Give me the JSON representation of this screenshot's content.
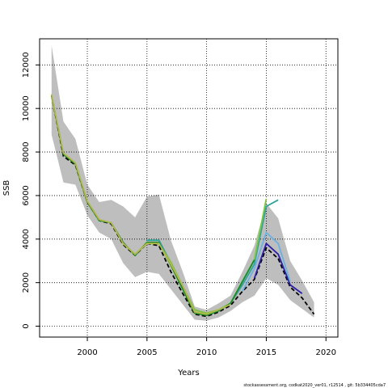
{
  "chart_data": {
    "type": "line",
    "xlabel": "Years",
    "ylabel": "SSB",
    "xlim": [
      1996,
      2021
    ],
    "ylim": [
      -500,
      13200
    ],
    "x_ticks": [
      2000,
      2005,
      2010,
      2015,
      2020
    ],
    "y_ticks": [
      0,
      2000,
      4000,
      6000,
      8000,
      10000,
      12000
    ],
    "grid": true,
    "footer": "stockassessment.org, codkat2020_ver01, r12514 , git: 5b334405cda7",
    "band": {
      "color": "#bebebe",
      "x": [
        1997,
        1998,
        1999,
        2000,
        2001,
        2002,
        2003,
        2004,
        2005,
        2006,
        2007,
        2008,
        2009,
        2010,
        2011,
        2012,
        2013,
        2014,
        2015,
        2016,
        2017,
        2018,
        2019
      ],
      "lower": [
        8800,
        6600,
        6500,
        5100,
        4300,
        4000,
        2900,
        2250,
        2500,
        2400,
        1700,
        1000,
        300,
        250,
        400,
        700,
        1100,
        1400,
        2200,
        1900,
        1200,
        800,
        400
      ],
      "upper": [
        12900,
        9400,
        8600,
        6500,
        5700,
        5800,
        5500,
        5000,
        5950,
        6050,
        3950,
        2500,
        900,
        750,
        1050,
        1400,
        2500,
        3700,
        5650,
        4950,
        3000,
        2100,
        1100
      ]
    },
    "series": [
      {
        "color": "#000000",
        "dash": "5,3",
        "x": [
          1997,
          1998,
          1999,
          2000,
          2001,
          2002,
          2003,
          2004,
          2005,
          2006,
          2007,
          2008,
          2009,
          2010,
          2011,
          2012,
          2013,
          2014,
          2015,
          2016,
          2017,
          2018,
          2019
        ],
        "values": [
          10600,
          7800,
          7400,
          5700,
          4850,
          4700,
          3750,
          3250,
          3800,
          3700,
          2500,
          1500,
          550,
          450,
          650,
          950,
          1600,
          2150,
          3600,
          3100,
          1800,
          1300,
          550
        ]
      },
      {
        "color": "#2c1faa",
        "x": [
          2014,
          2015,
          2016,
          2017,
          2018
        ],
        "values": [
          2200,
          3800,
          3300,
          1900,
          1500
        ]
      },
      {
        "color": "#6ab1e4",
        "x": [
          2013,
          2014,
          2015,
          2016,
          2017
        ],
        "values": [
          1600,
          2650,
          4300,
          3800,
          2050
        ]
      },
      {
        "color": "#2ca59a",
        "x": [
          2005,
          2006,
          2007,
          2008,
          2009,
          2010,
          2011,
          2012,
          2013,
          2014,
          2015,
          2016
        ],
        "values": [
          3950,
          3950,
          2900,
          1750,
          650,
          550,
          750,
          1050,
          1900,
          2850,
          5500,
          5800
        ]
      },
      {
        "color": "#7cc43c",
        "x": [
          2003,
          2004,
          2005,
          2006,
          2007,
          2008,
          2009,
          2010,
          2011,
          2012,
          2013,
          2014,
          2015
        ],
        "values": [
          3800,
          3300,
          3800,
          3800,
          2950,
          1850,
          750,
          600,
          750,
          1050,
          2050,
          3050,
          5850
        ]
      },
      {
        "color": "#1c8a2a",
        "x": [
          1997,
          1998,
          1999,
          2000,
          2001,
          2002,
          2003,
          2004,
          2005,
          2006,
          2007,
          2008,
          2009,
          2010,
          2011,
          2012,
          2013,
          2014
        ],
        "values": [
          10600,
          7900,
          7450,
          5700,
          4850,
          4750,
          3850,
          3250,
          3850,
          3850,
          2800,
          1700,
          600,
          500,
          700,
          1050,
          2050,
          3050
        ]
      },
      {
        "color": "#b5b84a",
        "x": [
          1997,
          1998,
          1999,
          2000,
          2001,
          2002,
          2003,
          2004,
          2005,
          2006,
          2007,
          2008,
          2009,
          2010,
          2011,
          2012
        ],
        "values": [
          10650,
          7950,
          7500,
          5750,
          4900,
          4750,
          3800,
          3300,
          3800,
          3800,
          2850,
          1850,
          650,
          550,
          750,
          1000
        ]
      }
    ]
  }
}
